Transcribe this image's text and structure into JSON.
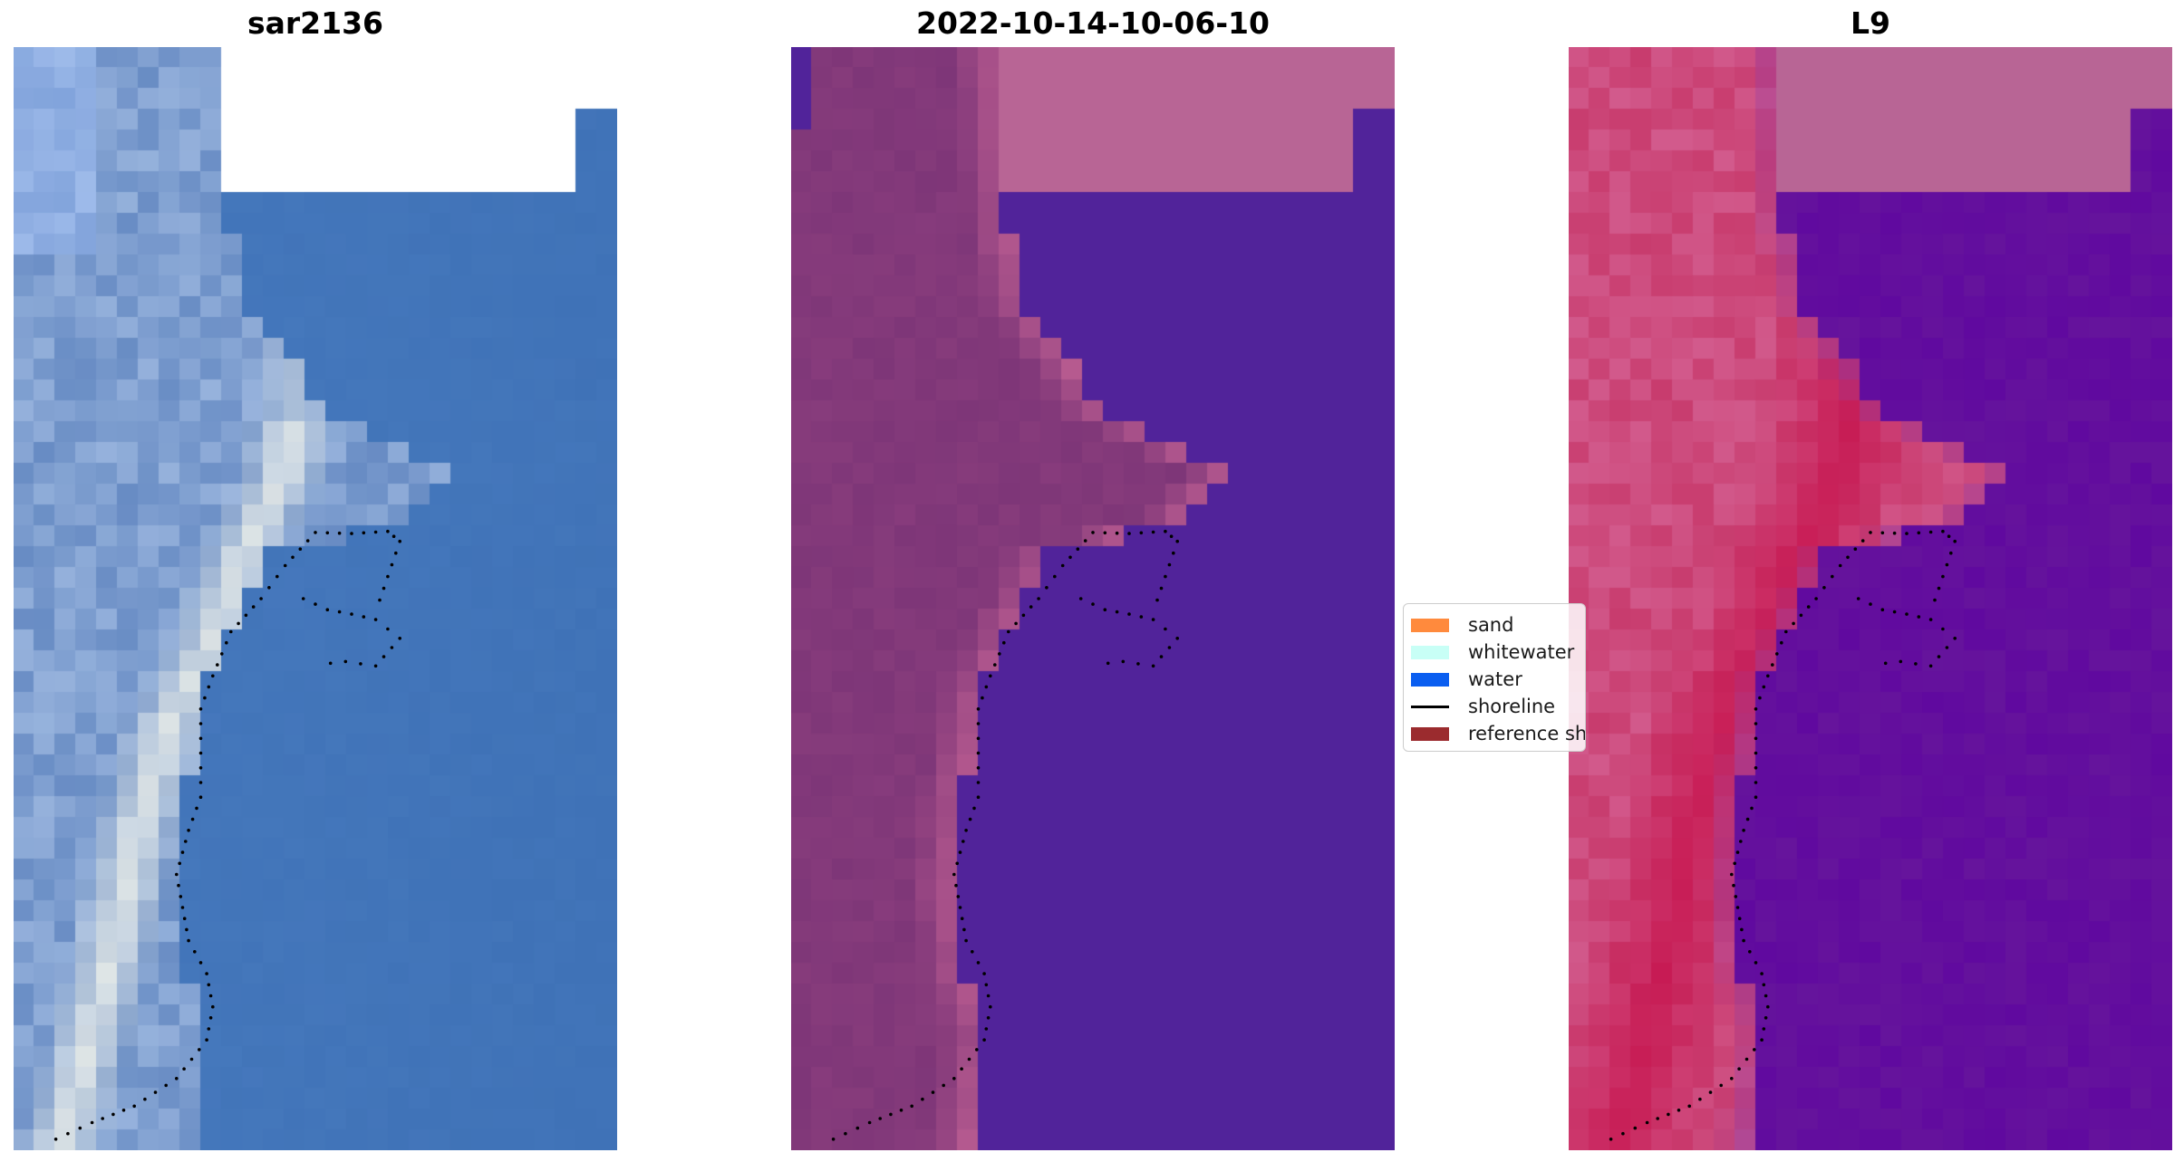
{
  "panels": [
    {
      "title": "sar2136",
      "scheme": "rgb"
    },
    {
      "title": "2022-10-14-10-06-10",
      "scheme": "classified"
    },
    {
      "title": "L9",
      "scheme": "index"
    }
  ],
  "legend": {
    "items": [
      {
        "label": "sand",
        "color": "#ff8a3d",
        "kind": "patch"
      },
      {
        "label": "whitewater",
        "color": "#c8fff6",
        "kind": "patch"
      },
      {
        "label": "water",
        "color": "#0a5ef0",
        "kind": "patch"
      },
      {
        "label": "shoreline",
        "color": "#000000",
        "kind": "line"
      },
      {
        "label": "reference shoreline",
        "color": "#9b2b2e",
        "kind": "patch"
      }
    ]
  },
  "colors": {
    "water_true": "#3f72b7",
    "water_class": "#51239a",
    "land_class": "#7e3678",
    "nodata_class": "#b86595",
    "water_index": "#60099f",
    "land_index": "#c7134d"
  }
}
